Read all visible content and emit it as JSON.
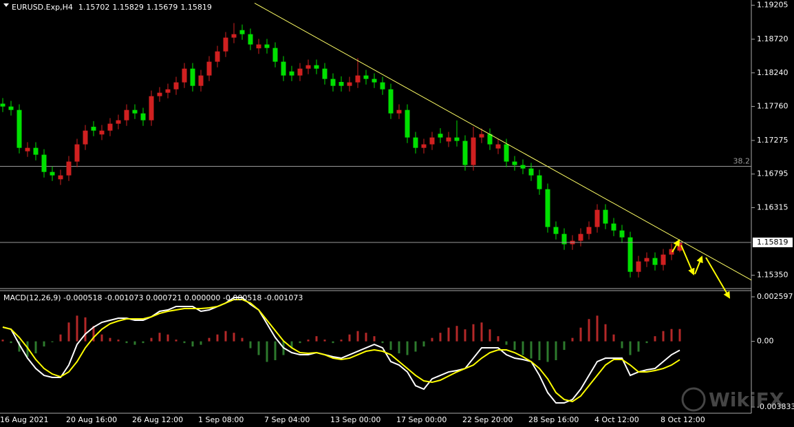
{
  "chart_data": [
    {
      "type": "candlestick",
      "title": "EURUSD.Exp,H4",
      "header_values": [
        1.15702,
        1.15829,
        1.15679,
        1.15819
      ],
      "categories": [
        "16 Aug 2021",
        null,
        null,
        null,
        null,
        null,
        null,
        null,
        "20 Aug 16:00",
        null,
        null,
        null,
        null,
        null,
        null,
        null,
        "26 Aug 12:00",
        null,
        null,
        null,
        null,
        null,
        null,
        null,
        "1 Sep 08:00",
        null,
        null,
        null,
        null,
        null,
        null,
        null,
        "7 Sep 04:00",
        null,
        null,
        null,
        null,
        null,
        null,
        null,
        "13 Sep 00:00",
        null,
        null,
        null,
        null,
        null,
        null,
        null,
        "17 Sep 00:00",
        null,
        null,
        null,
        null,
        null,
        null,
        null,
        "22 Sep 20:00",
        null,
        null,
        null,
        null,
        null,
        null,
        null,
        "28 Sep 16:00",
        null,
        null,
        null,
        null,
        null,
        null,
        null,
        "4 Oct 12:00",
        null,
        null,
        null,
        null,
        null,
        null,
        null,
        "8 Oct 12:00",
        null,
        null
      ],
      "candles": [
        [
          1.178,
          1.1788,
          1.1768,
          1.17759
        ],
        [
          1.17759,
          1.1784,
          1.1763,
          1.1771
        ],
        [
          1.1771,
          1.1779,
          1.1709,
          1.17169
        ],
        [
          1.1712,
          1.1725,
          1.1704,
          1.17169
        ],
        [
          1.17169,
          1.1725,
          1.1699,
          1.17071
        ],
        [
          1.17071,
          1.1715,
          1.16745,
          1.16825
        ],
        [
          1.16825,
          1.16905,
          1.16696,
          1.16776
        ],
        [
          1.1672,
          1.16856,
          1.1664,
          1.16776
        ],
        [
          1.16776,
          1.17053,
          1.16696,
          1.16973
        ],
        [
          1.16973,
          1.17299,
          1.16893,
          1.17219
        ],
        [
          1.17219,
          1.17495,
          1.17139,
          1.17415
        ],
        [
          1.1747,
          1.1755,
          1.17335,
          1.17415
        ],
        [
          1.1736,
          1.17495,
          1.1728,
          1.17415
        ],
        [
          1.17415,
          1.17594,
          1.17335,
          1.17514
        ],
        [
          1.17514,
          1.17643,
          1.17434,
          1.17563
        ],
        [
          1.17563,
          1.1779,
          1.17483,
          1.1771
        ],
        [
          1.1771,
          1.1779,
          1.17581,
          1.17661
        ],
        [
          1.17661,
          1.17741,
          1.17483,
          1.17563
        ],
        [
          1.17563,
          1.17987,
          1.17483,
          1.17907
        ],
        [
          1.17907,
          1.18036,
          1.17827,
          1.17956
        ],
        [
          1.17956,
          1.18085,
          1.17876,
          1.18005
        ],
        [
          1.18005,
          1.18184,
          1.17925,
          1.18104
        ],
        [
          1.18104,
          1.1838,
          1.18024,
          1.183
        ],
        [
          1.183,
          1.1838,
          1.17974,
          1.18054
        ],
        [
          1.18054,
          1.18282,
          1.17974,
          1.18202
        ],
        [
          1.18202,
          1.18479,
          1.18122,
          1.18399
        ],
        [
          1.18399,
          1.18626,
          1.18319,
          1.18546
        ],
        [
          1.18546,
          1.18823,
          1.18466,
          1.18743
        ],
        [
          1.18743,
          1.1895,
          1.18663,
          1.18792
        ],
        [
          1.1885,
          1.1893,
          1.18712,
          1.18792
        ],
        [
          1.18792,
          1.18872,
          1.18565,
          1.18645
        ],
        [
          1.1859,
          1.18725,
          1.1851,
          1.18645
        ],
        [
          1.18645,
          1.18725,
          1.18515,
          1.18595
        ],
        [
          1.18595,
          1.18675,
          1.18319,
          1.18399
        ],
        [
          1.18399,
          1.18479,
          1.18122,
          1.18202
        ],
        [
          1.1826,
          1.1834,
          1.18122,
          1.18202
        ],
        [
          1.18202,
          1.1838,
          1.18122,
          1.183
        ],
        [
          1.183,
          1.18429,
          1.1822,
          1.18349
        ],
        [
          1.18349,
          1.18429,
          1.1822,
          1.183
        ],
        [
          1.183,
          1.1838,
          1.18073,
          1.18153
        ],
        [
          1.18153,
          1.18233,
          1.17974,
          1.18054
        ],
        [
          1.1811,
          1.1819,
          1.17974,
          1.18054
        ],
        [
          1.18054,
          1.18184,
          1.17974,
          1.18104
        ],
        [
          1.18104,
          1.1845,
          1.18024,
          1.18202
        ],
        [
          1.18202,
          1.18282,
          1.18073,
          1.18153
        ],
        [
          1.18153,
          1.18233,
          1.18024,
          1.18104
        ],
        [
          1.18104,
          1.18184,
          1.17925,
          1.18005
        ],
        [
          1.18005,
          1.18085,
          1.17581,
          1.17661
        ],
        [
          1.17661,
          1.1779,
          1.17581,
          1.1771
        ],
        [
          1.1771,
          1.1779,
          1.17237,
          1.17317
        ],
        [
          1.17317,
          1.17397,
          1.17089,
          1.17169
        ],
        [
          1.17169,
          1.17299,
          1.17089,
          1.17219
        ],
        [
          1.17219,
          1.17397,
          1.17139,
          1.17317
        ],
        [
          1.1737,
          1.1745,
          1.17237,
          1.17317
        ],
        [
          1.1726,
          1.17397,
          1.1718,
          1.17317
        ],
        [
          1.17317,
          1.1756,
          1.17188,
          1.17268
        ],
        [
          1.17268,
          1.17348,
          1.16844,
          1.16924
        ],
        [
          1.16924,
          1.1747,
          1.16844,
          1.17317
        ],
        [
          1.17317,
          1.17446,
          1.17237,
          1.17366
        ],
        [
          1.17366,
          1.17446,
          1.17139,
          1.17219
        ],
        [
          1.1716,
          1.17299,
          1.1708,
          1.17219
        ],
        [
          1.17219,
          1.17299,
          1.16893,
          1.16973
        ],
        [
          1.16973,
          1.17053,
          1.16844,
          1.16924
        ],
        [
          1.16924,
          1.17004,
          1.16794,
          1.16874
        ],
        [
          1.16874,
          1.16954,
          1.16696,
          1.16776
        ],
        [
          1.16776,
          1.16856,
          1.16499,
          1.16579
        ],
        [
          1.16579,
          1.16659,
          1.15959,
          1.16039
        ],
        [
          1.16039,
          1.16119,
          1.1586,
          1.1594
        ],
        [
          1.1594,
          1.1602,
          1.15713,
          1.15793
        ],
        [
          1.15793,
          1.15922,
          1.15713,
          1.15842
        ],
        [
          1.15842,
          1.1602,
          1.15762,
          1.1594
        ],
        [
          1.1594,
          1.16119,
          1.1586,
          1.16039
        ],
        [
          1.16039,
          1.16364,
          1.15959,
          1.16284
        ],
        [
          1.16284,
          1.16364,
          1.16008,
          1.16088
        ],
        [
          1.16088,
          1.16168,
          1.15909,
          1.15989
        ],
        [
          1.15989,
          1.16069,
          1.15811,
          1.15891
        ],
        [
          1.15891,
          1.15971,
          1.15319,
          1.15399
        ],
        [
          1.15399,
          1.15627,
          1.15319,
          1.15547
        ],
        [
          1.15547,
          1.15676,
          1.15467,
          1.15596
        ],
        [
          1.15596,
          1.15676,
          1.15418,
          1.15498
        ],
        [
          1.15498,
          1.15725,
          1.15418,
          1.15645
        ],
        [
          1.15645,
          1.15804,
          1.15565,
          1.15724
        ],
        [
          1.15702,
          1.15829,
          1.15679,
          1.15819
        ]
      ],
      "up_color": "#d02020",
      "down_color": "#00e000",
      "ylim": [
        1.1515,
        1.1928
      ],
      "yticks": [
        1.19205,
        {
          "value": 1.1872,
          "label": "1.18720"
        },
        {
          "value": 1.1824,
          "label": "1.18240"
        },
        {
          "value": 1.1776,
          "label": "1.17760"
        },
        1.17275,
        1.16795,
        1.16315,
        {
          "value": 1.1535,
          "label": "1.15350"
        }
      ],
      "last_price": 1.15819,
      "levels": [
        {
          "value": 1.16905,
          "label": "38.2"
        }
      ],
      "trendline": {
        "from": [
          30.5,
          1.19235
        ],
        "to": [
          90.67,
          1.15281
        ],
        "color": "#ffff66"
      }
    },
    {
      "type": "macd",
      "label": "MACD(12,26,9) -0.000518 -0.001073 0.000721 0.000000 -0.000518 -0.001073",
      "histogram": [
        0.0001,
        -0.0001,
        -0.0006,
        -0.0009,
        -0.0007,
        -0.0003,
        -5e-05,
        0.0004,
        0.0011,
        0.0015,
        0.0014,
        0.0009,
        0.0004,
        0.0002,
        0.0001,
        -0.0001,
        -0.0002,
        -0.0001,
        0.0002,
        0.0005,
        0.0004,
        0.0001,
        -0.0001,
        -0.0003,
        -0.0002,
        0.0002,
        0.0004,
        0.0006,
        0.0005,
        0.0002,
        -0.0004,
        -0.0008,
        -0.0012,
        -0.0011,
        -0.0008,
        -0.0004,
        -0.0001,
        0.0001,
        0.0003,
        0.0001,
        -0.0001,
        0.0001,
        0.0004,
        0.0006,
        0.0005,
        0.0003,
        -0.0001,
        -0.0005,
        -0.0007,
        -0.0008,
        -0.0006,
        -0.0003,
        0.0002,
        0.0005,
        0.0008,
        0.0009,
        0.0007,
        0.001,
        0.0011,
        0.0007,
        0.0003,
        -0.0002,
        -0.0005,
        -0.0008,
        -0.001,
        -0.0011,
        -0.0012,
        -0.0011,
        -0.0005,
        0.0002,
        0.0008,
        0.0013,
        0.0015,
        0.001,
        0.0004,
        -0.0004,
        -0.0008,
        -0.0006,
        -0.0001,
        0.0003,
        0.0006,
        0.00072,
        0.000721
      ],
      "hist_up_color": "#b42828",
      "hist_down_color": "#2d7a2d",
      "series": [
        {
          "color": "#ffffff",
          "values": [
            0.000828,
            0.000708,
            -0.000177,
            -0.000981,
            -0.001584,
            -0.001986,
            -0.002106,
            -0.002106,
            -0.001383,
            -0.000177,
            0.000426,
            0.000828,
            0.00111,
            0.00123,
            0.001351,
            0.001351,
            0.00123,
            0.00123,
            0.001431,
            0.001753,
            0.001833,
            0.002034,
            0.002034,
            0.002034,
            0.001753,
            0.001833,
            0.002034,
            0.002235,
            0.002557,
            0.002557,
            0.002155,
            0.001833,
            0.001029,
            0.000225,
            -0.000378,
            -0.000659,
            -0.00078,
            -0.00078,
            -0.000659,
            -0.00078,
            -0.0009,
            -0.000981,
            -0.00078,
            -0.000579,
            -0.000378,
            -0.000177,
            -0.000378,
            -0.001182,
            -0.001383,
            -0.001785,
            -0.002589,
            -0.00279,
            -0.002187,
            -0.001986,
            -0.001785,
            -0.001704,
            -0.001584,
            -0.000981,
            -0.000378,
            -0.000378,
            -0.000378,
            -0.00078,
            -0.000981,
            -0.001061,
            -0.001182,
            -0.001986,
            -0.002991,
            -0.003594,
            -0.003594,
            -0.003393,
            -0.00279,
            -0.001986,
            -0.001182,
            -0.000981,
            -0.000981,
            -0.000981,
            -0.001986,
            -0.001785,
            -0.001664,
            -0.001584,
            -0.001182,
            -0.00078,
            -0.000518
          ]
        },
        {
          "color": "#ffff00",
          "values": [
            0.000828,
            0.000708,
            0.000225,
            -0.000378,
            -0.001061,
            -0.001584,
            -0.001905,
            -0.002066,
            -0.001785,
            -0.001182,
            -0.000378,
            0.000225,
            0.000708,
            0.001029,
            0.00119,
            0.001311,
            0.001311,
            0.001311,
            0.001431,
            0.001632,
            0.001753,
            0.001833,
            0.001914,
            0.001914,
            0.001914,
            0.001954,
            0.002034,
            0.002235,
            0.002436,
            0.002436,
            0.002235,
            0.001833,
            0.00123,
            0.000627,
            2.4e-05,
            -0.000378,
            -0.000659,
            -0.000699,
            -0.000659,
            -0.00078,
            -0.000981,
            -0.001061,
            -0.000981,
            -0.00078,
            -0.000579,
            -0.000498,
            -0.000579,
            -0.00078,
            -0.001182,
            -0.001584,
            -0.001986,
            -0.002307,
            -0.002388,
            -0.002267,
            -0.002026,
            -0.001785,
            -0.001584,
            -0.001383,
            -0.000981,
            -0.000659,
            -0.000498,
            -0.000498,
            -0.000659,
            -0.0009,
            -0.001182,
            -0.001584,
            -0.002187,
            -0.002991,
            -0.003393,
            -0.003513,
            -0.003192,
            -0.002589,
            -0.001986,
            -0.001383,
            -0.001061,
            -0.001061,
            -0.001383,
            -0.001785,
            -0.001785,
            -0.001704,
            -0.001584,
            -0.001383,
            -0.001073
          ]
        }
      ],
      "ylim": [
        -0.004195,
        0.002959
      ],
      "yticks": [
        0.002597,
        {
          "value": 0,
          "label": "0.00"
        },
        -0.003833
      ]
    }
  ],
  "watermark": "WikiFX"
}
